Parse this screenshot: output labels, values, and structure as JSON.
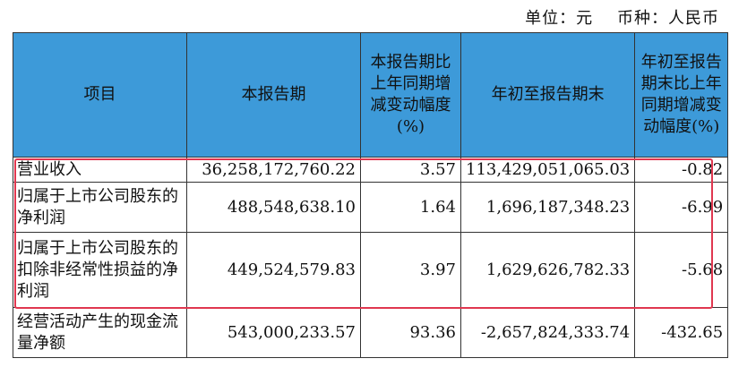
{
  "unit": {
    "unit_label": "单位：元",
    "currency_label": "币种：人民币"
  },
  "table": {
    "headers": [
      "项目",
      "本报告期",
      "本报告期比上年同期增减变动幅度(%)",
      "年初至报告期末",
      "年初至报告期末比上年同期增减变动幅度(%)"
    ],
    "rows": [
      {
        "item": "营业收入",
        "current": "36,258,172,760.22",
        "current_change": "3.57",
        "ytd": "113,429,051,065.03",
        "ytd_change": "-0.82"
      },
      {
        "item": "归属于上市公司股东的净利润",
        "current": "488,548,638.10",
        "current_change": "1.64",
        "ytd": "1,696,187,348.23",
        "ytd_change": "-6.99"
      },
      {
        "item": "归属于上市公司股东的扣除非经常性损益的净利润",
        "current": "449,524,579.83",
        "current_change": "3.97",
        "ytd": "1,629,626,782.33",
        "ytd_change": "-5.68"
      },
      {
        "item": "经营活动产生的现金流量净额",
        "current": "543,000,233.57",
        "current_change": "93.36",
        "ytd": "-2,657,824,333.74",
        "ytd_change": "-432.65"
      }
    ]
  },
  "colors": {
    "header_bg": "#3d9ad9",
    "highlight_border": "#e0374f"
  }
}
